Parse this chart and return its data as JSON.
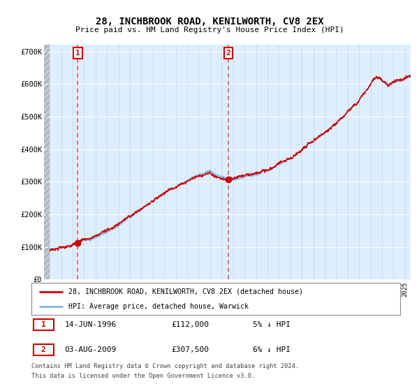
{
  "title": "28, INCHBROOK ROAD, KENILWORTH, CV8 2EX",
  "subtitle": "Price paid vs. HM Land Registry's House Price Index (HPI)",
  "ylim": [
    0,
    720000
  ],
  "yticks": [
    0,
    100000,
    200000,
    300000,
    400000,
    500000,
    600000,
    700000
  ],
  "ytick_labels": [
    "£0",
    "£100K",
    "£200K",
    "£300K",
    "£400K",
    "£500K",
    "£600K",
    "£700K"
  ],
  "sale1_date": 1996.45,
  "sale1_price": 112000,
  "sale1_label": "1",
  "sale2_date": 2009.58,
  "sale2_price": 307500,
  "sale2_label": "2",
  "hpi_color": "#7cb4e8",
  "price_color": "#cc0000",
  "dashed_line_color": "#e05050",
  "annotation_box_color": "#cc0000",
  "plot_bg_color": "#ddeeff",
  "hatch_color": "#c0c8d0",
  "legend_label_price": "28, INCHBROOK ROAD, KENILWORTH, CV8 2EX (detached house)",
  "legend_label_hpi": "HPI: Average price, detached house, Warwick",
  "footer1": "Contains HM Land Registry data © Crown copyright and database right 2024.",
  "footer2": "This data is licensed under the Open Government Licence v3.0.",
  "sale1_info": "14-JUN-1996",
  "sale1_amount": "£112,000",
  "sale1_pct": "5% ↓ HPI",
  "sale2_info": "03-AUG-2009",
  "sale2_amount": "£307,500",
  "sale2_pct": "6% ↓ HPI"
}
